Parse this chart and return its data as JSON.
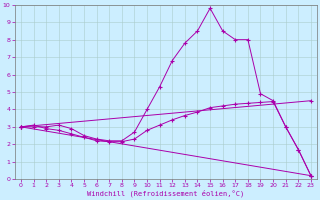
{
  "title": "",
  "xlabel": "Windchill (Refroidissement éolien,°C)",
  "ylabel": "",
  "bg_color": "#cceeff",
  "grid_color": "#aacccc",
  "line_color": "#aa00aa",
  "marker": "+",
  "xlim": [
    -0.5,
    23.5
  ],
  "ylim": [
    0,
    10
  ],
  "xticks": [
    0,
    1,
    2,
    3,
    4,
    5,
    6,
    7,
    8,
    9,
    10,
    11,
    12,
    13,
    14,
    15,
    16,
    17,
    18,
    19,
    20,
    21,
    22,
    23
  ],
  "yticks": [
    0,
    1,
    2,
    3,
    4,
    5,
    6,
    7,
    8,
    9,
    10
  ],
  "lines": [
    {
      "x": [
        0,
        1,
        2,
        3,
        4,
        5,
        6,
        7,
        8,
        9,
        10,
        11,
        12,
        13,
        14,
        15,
        16,
        17,
        18,
        19,
        20,
        21,
        22,
        23
      ],
      "y": [
        3.0,
        3.0,
        3.0,
        3.1,
        2.9,
        2.5,
        2.3,
        2.2,
        2.2,
        2.7,
        4.0,
        5.3,
        6.8,
        7.8,
        8.5,
        9.8,
        8.5,
        8.0,
        8.0,
        4.9,
        4.5,
        3.0,
        1.7,
        0.2
      ]
    },
    {
      "x": [
        0,
        23
      ],
      "y": [
        3.0,
        4.5
      ]
    },
    {
      "x": [
        0,
        23
      ],
      "y": [
        3.0,
        0.2
      ]
    },
    {
      "x": [
        0,
        1,
        2,
        3,
        4,
        5,
        6,
        7,
        8,
        9,
        10,
        11,
        12,
        13,
        14,
        15,
        16,
        17,
        18,
        19,
        20,
        21,
        22,
        23
      ],
      "y": [
        3.0,
        3.1,
        2.9,
        2.8,
        2.6,
        2.4,
        2.2,
        2.15,
        2.15,
        2.3,
        2.8,
        3.1,
        3.4,
        3.65,
        3.85,
        4.1,
        4.2,
        4.3,
        4.35,
        4.4,
        4.45,
        3.0,
        1.7,
        0.2
      ]
    }
  ]
}
